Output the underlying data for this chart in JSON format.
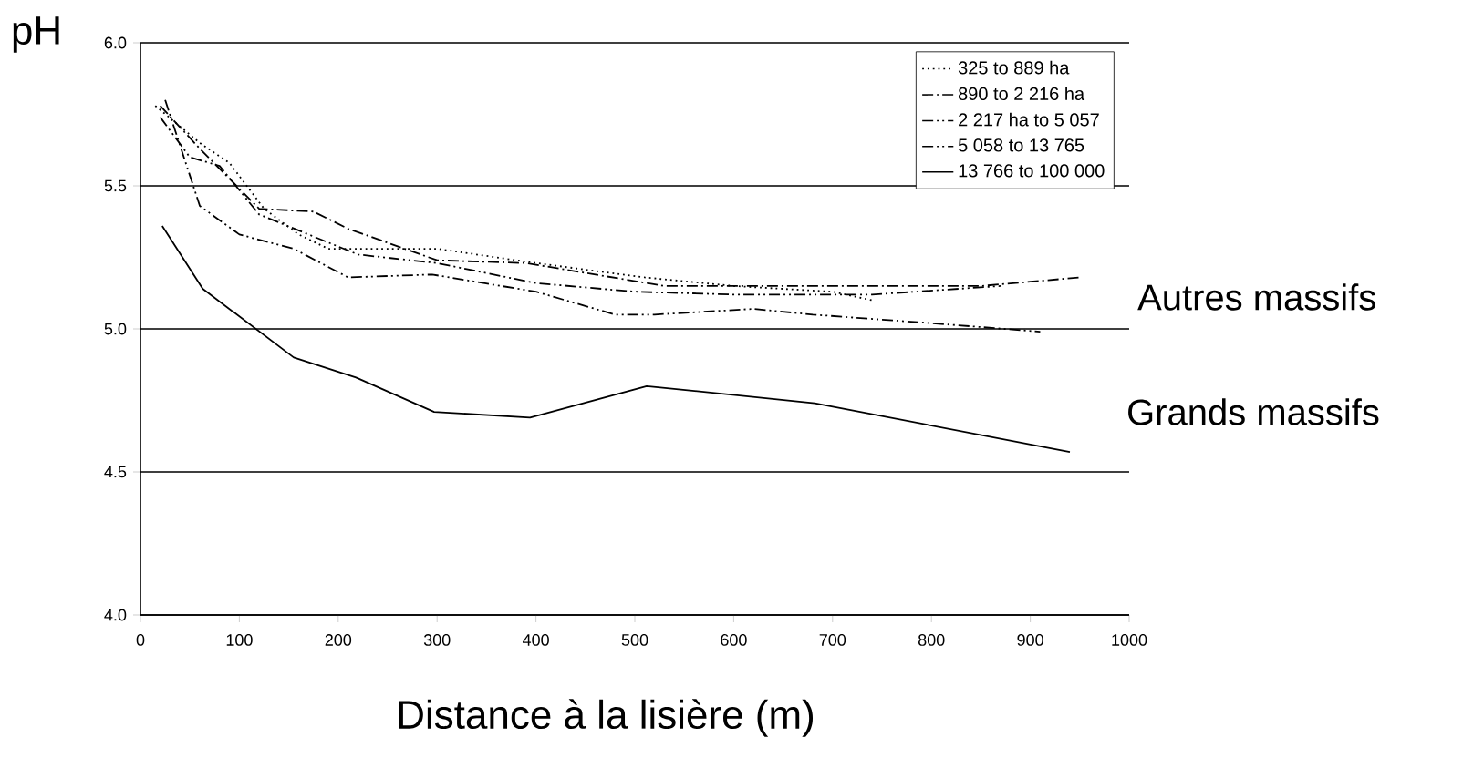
{
  "chart_data": {
    "type": "line",
    "xlabel": "Distance à la lisière (m)",
    "ylabel": "pH",
    "xlim": [
      0,
      1000
    ],
    "xticks": [
      0,
      100,
      200,
      300,
      400,
      500,
      600,
      700,
      800,
      900,
      1000
    ],
    "ylim": [
      4.0,
      6.0
    ],
    "yticks": [
      {
        "value": 4.0,
        "label": "4.0"
      },
      {
        "value": 4.5,
        "label": "4.5"
      },
      {
        "value": 5.0,
        "label": "5.0"
      },
      {
        "value": 5.5,
        "label": "5.5"
      },
      {
        "value": 6.0,
        "label": "6.0"
      }
    ],
    "grid": "y",
    "legend": "top right",
    "marker": "none",
    "series": [
      {
        "name": "325 to 889 ha",
        "color": "#000000",
        "line_style": "dotted",
        "x": [
          15,
          60,
          90,
          125,
          160,
          190,
          300,
          400,
          510,
          600,
          700,
          740
        ],
        "values": [
          5.78,
          5.65,
          5.58,
          5.42,
          5.33,
          5.28,
          5.28,
          5.23,
          5.18,
          5.15,
          5.13,
          5.1
        ]
      },
      {
        "name": "890 to 2 216 ha",
        "color": "#000000",
        "line_style": "dashdot",
        "x": [
          20,
          60,
          120,
          175,
          210,
          300,
          390,
          530,
          700,
          850,
          950
        ],
        "values": [
          5.78,
          5.63,
          5.42,
          5.41,
          5.35,
          5.24,
          5.23,
          5.15,
          5.15,
          5.15,
          5.18
        ]
      },
      {
        "name": "2 217 ha to 5 057",
        "color": "#000000",
        "line_style": "dashdotdot",
        "x": [
          25,
          60,
          100,
          155,
          210,
          295,
          400,
          480,
          520,
          620,
          680,
          800,
          910
        ],
        "values": [
          5.8,
          5.43,
          5.33,
          5.28,
          5.18,
          5.19,
          5.13,
          5.05,
          5.05,
          5.07,
          5.05,
          5.02,
          4.99
        ]
      },
      {
        "name": "5 058 to 13 765",
        "color": "#000000",
        "line_style": "dashdotdot",
        "x": [
          20,
          50,
          80,
          120,
          170,
          220,
          300,
          400,
          500,
          600,
          700,
          740,
          870
        ],
        "values": [
          5.74,
          5.6,
          5.57,
          5.4,
          5.33,
          5.26,
          5.23,
          5.16,
          5.13,
          5.12,
          5.12,
          5.12,
          5.15
        ]
      },
      {
        "name": "13 766 to 100 000",
        "color": "#000000",
        "line_style": "solid",
        "x": [
          22,
          63,
          155,
          218,
          297,
          394,
          512,
          682,
          940
        ],
        "values": [
          5.36,
          5.14,
          4.9,
          4.83,
          4.71,
          4.69,
          4.8,
          4.74,
          4.57
        ]
      }
    ],
    "annotations": [
      "Autres massifs",
      "Grands massifs"
    ]
  }
}
